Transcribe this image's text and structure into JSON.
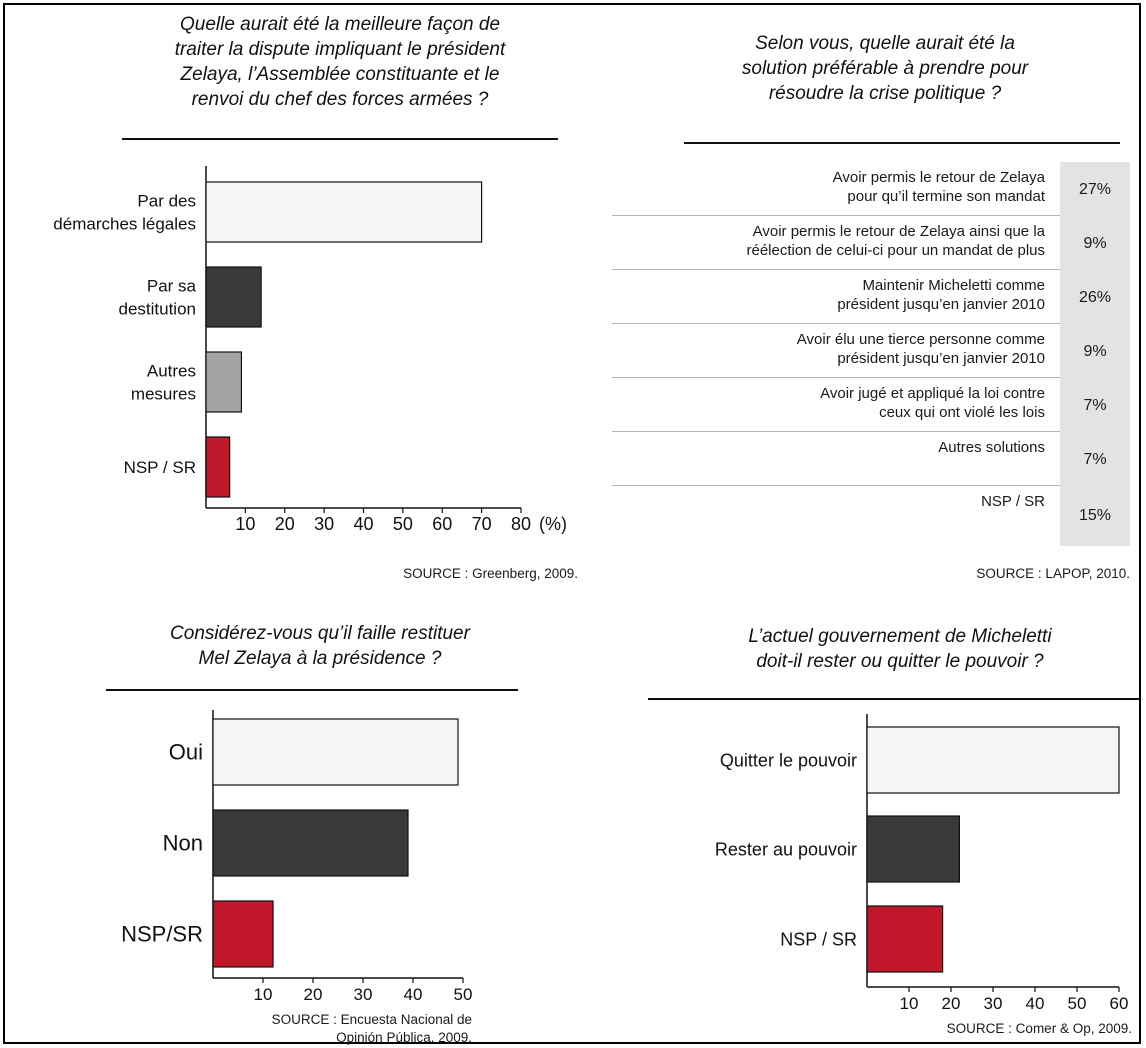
{
  "chart_data": [
    {
      "type": "bar",
      "orientation": "horizontal",
      "title": "Quelle aurait été la meilleure façon de\ntraiter la dispute impliquant le  président\nZelaya, l’Assemblée constituante et le\nrenvoi du chef des forces armées  ?",
      "categories": [
        "Par des\ndémarches légales",
        "Par sa\ndestitution",
        "Autres\nmesures",
        "NSP / SR"
      ],
      "values": [
        70,
        14,
        9,
        6
      ],
      "colors": [
        "#f5f5f5",
        "#3a3a3a",
        "#a3a3a3",
        "#c0172b"
      ],
      "xlim": [
        0,
        80
      ],
      "xticks": [
        10,
        20,
        30,
        40,
        50,
        60,
        70,
        80
      ],
      "xunit": "(%)",
      "source": "SOURCE : Greenberg, 2009."
    },
    {
      "type": "table",
      "title": "Selon vous, quelle aurait été la\nsolution préférable à prendre pour\nrésoudre la crise politique ?",
      "rows": [
        {
          "label": "Avoir permis le retour de Zelaya\npour qu’il termine son mandat",
          "value": "27%"
        },
        {
          "label": "Avoir permis le retour de Zelaya ainsi que la\nréélection de celui-ci pour un mandat de plus",
          "value": "9%"
        },
        {
          "label": "Maintenir Micheletti comme\nprésident jusqu’en janvier 2010",
          "value": "26%"
        },
        {
          "label": "Avoir élu une tierce personne comme\nprésident jusqu’en janvier 2010",
          "value": "9%"
        },
        {
          "label": "Avoir jugé et appliqué la loi contre\nceux qui ont violé les lois",
          "value": "7%"
        },
        {
          "label": "Autres solutions",
          "value": "7%"
        },
        {
          "label": "NSP / SR",
          "value": "15%"
        }
      ],
      "source": "SOURCE : LAPOP, 2010."
    },
    {
      "type": "bar",
      "orientation": "horizontal",
      "title": "Considérez-vous qu’il faille restituer\nMel Zelaya à la présidence ?",
      "categories": [
        "Oui",
        "Non",
        "NSP/SR"
      ],
      "values": [
        49,
        39,
        12
      ],
      "colors": [
        "#f5f5f5",
        "#3a3a3a",
        "#c0172b"
      ],
      "xlim": [
        0,
        50
      ],
      "xticks": [
        10,
        20,
        30,
        40,
        50
      ],
      "source_lines": [
        "SOURCE : Encuesta Nacional  de",
        "Opinión Pública, 2009."
      ]
    },
    {
      "type": "bar",
      "orientation": "horizontal",
      "title": "L’actuel gouvernement de Micheletti\ndoit-il rester ou quitter le pouvoir ?",
      "categories": [
        "Quitter le pouvoir",
        "Rester au pouvoir",
        "NSP / SR"
      ],
      "values": [
        60,
        22,
        18
      ],
      "colors": [
        "#f5f5f5",
        "#3a3a3a",
        "#c0172b"
      ],
      "xlim": [
        0,
        60
      ],
      "xticks": [
        10,
        20,
        30,
        40,
        50,
        60
      ],
      "source": "SOURCE : Comer & Op, 2009."
    }
  ]
}
